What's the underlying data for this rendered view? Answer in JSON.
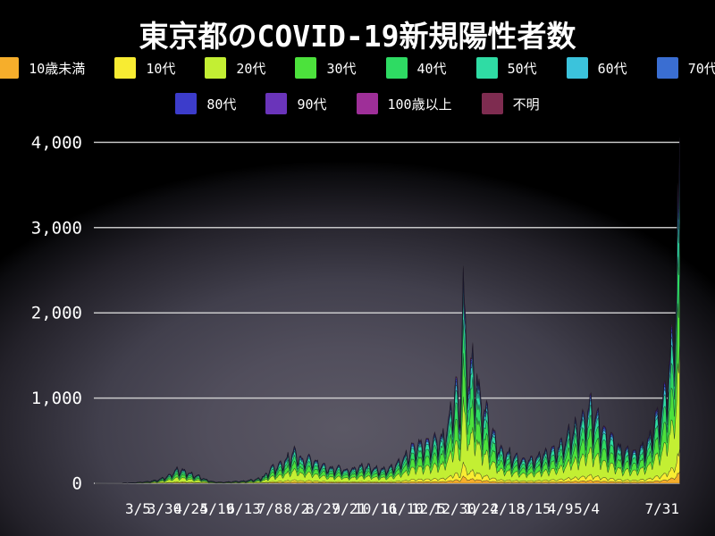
{
  "title": "東京都のCOVID-19新規陽性者数",
  "legend": {
    "rows": [
      8,
      4
    ],
    "items": [
      {
        "key": "under10",
        "label": "10歳未満",
        "color": "#f6ae2b"
      },
      {
        "key": "10s",
        "label": "10代",
        "color": "#f8ec32"
      },
      {
        "key": "20s",
        "label": "20代",
        "color": "#c3ef33"
      },
      {
        "key": "30s",
        "label": "30代",
        "color": "#4ce23c"
      },
      {
        "key": "40s",
        "label": "40代",
        "color": "#2edb63"
      },
      {
        "key": "50s",
        "label": "50代",
        "color": "#2fdca4"
      },
      {
        "key": "60s",
        "label": "60代",
        "color": "#3bc3dc"
      },
      {
        "key": "70s",
        "label": "70代",
        "color": "#3a6ed2"
      },
      {
        "key": "80s",
        "label": "80代",
        "color": "#3c3ccb"
      },
      {
        "key": "90s",
        "label": "90代",
        "color": "#6a34ba"
      },
      {
        "key": "100plus",
        "label": "100歳以上",
        "color": "#9e2f98"
      },
      {
        "key": "unknown",
        "label": "不明",
        "color": "#7e2c50"
      }
    ]
  },
  "chart_data": {
    "type": "area",
    "stacked": true,
    "title": "東京都のCOVID-19新規陽性者数",
    "xlabel": "",
    "ylabel": "",
    "grid": true,
    "legend_position": "top",
    "ylim": [
      0,
      4200
    ],
    "y_ticks": [
      {
        "label": "0",
        "value": 0
      },
      {
        "label": "1,000",
        "value": 1000
      },
      {
        "label": "2,000",
        "value": 2000
      },
      {
        "label": "3,000",
        "value": 3000
      },
      {
        "label": "4,000",
        "value": 4000
      }
    ],
    "x_ticks": [
      {
        "label": "3/5",
        "date": "2020-03-05"
      },
      {
        "label": "3/30",
        "date": "2020-03-30"
      },
      {
        "label": "4/24",
        "date": "2020-04-24"
      },
      {
        "label": "5/19",
        "date": "2020-05-19"
      },
      {
        "label": "6/13",
        "date": "2020-06-13"
      },
      {
        "label": "7/8",
        "date": "2020-07-08"
      },
      {
        "label": "8/2",
        "date": "2020-08-02"
      },
      {
        "label": "8/27",
        "date": "2020-08-27"
      },
      {
        "label": "9/21",
        "date": "2020-09-21"
      },
      {
        "label": "10/16",
        "date": "2020-10-16"
      },
      {
        "label": "11/10",
        "date": "2020-11-10"
      },
      {
        "label": "12/5",
        "date": "2020-12-05"
      },
      {
        "label": "12/30",
        "date": "2020-12-30"
      },
      {
        "label": "1/24",
        "date": "2021-01-24"
      },
      {
        "label": "2/18",
        "date": "2021-02-18"
      },
      {
        "label": "3/15",
        "date": "2021-03-15"
      },
      {
        "label": "4/9",
        "date": "2021-04-09"
      },
      {
        "label": "5/4",
        "date": "2021-05-04"
      },
      {
        "label": "7/31",
        "date": "2021-07-31",
        "align": "end"
      }
    ],
    "x_range": [
      "2020-01-24",
      "2021-07-31"
    ],
    "series_labels": [
      "10歳未満",
      "10代",
      "20代",
      "30代",
      "40代",
      "50代",
      "60代",
      "70代",
      "80代",
      "90代",
      "100歳以上",
      "不明"
    ],
    "age_shares": [
      0.034,
      0.065,
      0.3,
      0.2,
      0.155,
      0.115,
      0.05,
      0.035,
      0.025,
      0.012,
      0.002,
      0.007
    ],
    "weekday_factors": [
      0.8,
      0.52,
      0.68,
      0.84,
      0.92,
      0.97,
      1.0
    ],
    "noise": {
      "min": 0.85,
      "span": 0.15
    },
    "envelope_keypoints": [
      [
        "2020-01-24",
        0
      ],
      [
        "2020-02-15",
        2
      ],
      [
        "2020-03-01",
        8
      ],
      [
        "2020-03-14",
        25
      ],
      [
        "2020-03-24",
        50
      ],
      [
        "2020-03-31",
        90
      ],
      [
        "2020-04-07",
        150
      ],
      [
        "2020-04-11",
        200
      ],
      [
        "2020-04-17",
        190
      ],
      [
        "2020-04-24",
        140
      ],
      [
        "2020-05-01",
        110
      ],
      [
        "2020-05-08",
        55
      ],
      [
        "2020-05-16",
        20
      ],
      [
        "2020-05-24",
        15
      ],
      [
        "2020-06-02",
        25
      ],
      [
        "2020-06-10",
        30
      ],
      [
        "2020-06-19",
        45
      ],
      [
        "2020-06-26",
        65
      ],
      [
        "2020-07-03",
        110
      ],
      [
        "2020-07-09",
        220
      ],
      [
        "2020-07-15",
        250
      ],
      [
        "2020-07-23",
        340
      ],
      [
        "2020-08-01",
        470
      ],
      [
        "2020-08-07",
        340
      ],
      [
        "2020-08-14",
        380
      ],
      [
        "2020-08-21",
        300
      ],
      [
        "2020-08-28",
        250
      ],
      [
        "2020-09-04",
        220
      ],
      [
        "2020-09-11",
        230
      ],
      [
        "2020-09-18",
        200
      ],
      [
        "2020-09-25",
        210
      ],
      [
        "2020-10-02",
        240
      ],
      [
        "2020-10-09",
        250
      ],
      [
        "2020-10-16",
        220
      ],
      [
        "2020-10-23",
        200
      ],
      [
        "2020-10-30",
        220
      ],
      [
        "2020-11-06",
        290
      ],
      [
        "2020-11-13",
        400
      ],
      [
        "2020-11-20",
        540
      ],
      [
        "2020-11-27",
        570
      ],
      [
        "2020-12-04",
        600
      ],
      [
        "2020-12-11",
        620
      ],
      [
        "2020-12-18",
        670
      ],
      [
        "2020-12-24",
        890
      ],
      [
        "2020-12-31",
        1450
      ],
      [
        "2021-01-03",
        1000
      ],
      [
        "2021-01-07",
        2900
      ],
      [
        "2021-01-09",
        2270
      ],
      [
        "2021-01-13",
        1570
      ],
      [
        "2021-01-16",
        1850
      ],
      [
        "2021-01-20",
        1550
      ],
      [
        "2021-01-23",
        1250
      ],
      [
        "2021-01-28",
        1060
      ],
      [
        "2021-02-03",
        780
      ],
      [
        "2021-02-10",
        500
      ],
      [
        "2021-02-17",
        460
      ],
      [
        "2021-02-24",
        390
      ],
      [
        "2021-03-03",
        340
      ],
      [
        "2021-03-10",
        340
      ],
      [
        "2021-03-17",
        370
      ],
      [
        "2021-03-24",
        420
      ],
      [
        "2021-03-31",
        470
      ],
      [
        "2021-04-07",
        530
      ],
      [
        "2021-04-14",
        650
      ],
      [
        "2021-04-21",
        780
      ],
      [
        "2021-04-28",
        900
      ],
      [
        "2021-05-04",
        1050
      ],
      [
        "2021-05-08",
        1120
      ],
      [
        "2021-05-14",
        940
      ],
      [
        "2021-05-21",
        750
      ],
      [
        "2021-05-28",
        650
      ],
      [
        "2021-06-04",
        510
      ],
      [
        "2021-06-11",
        450
      ],
      [
        "2021-06-18",
        440
      ],
      [
        "2021-06-25",
        540
      ],
      [
        "2021-07-02",
        640
      ],
      [
        "2021-07-07",
        920
      ],
      [
        "2021-07-10",
        960
      ],
      [
        "2021-07-14",
        1150
      ],
      [
        "2021-07-17",
        1410
      ],
      [
        "2021-07-21",
        1830
      ],
      [
        "2021-07-24",
        2000
      ],
      [
        "2021-07-27",
        2850
      ],
      [
        "2021-07-28",
        3180
      ],
      [
        "2021-07-29",
        3865
      ],
      [
        "2021-07-30",
        3700
      ],
      [
        "2021-07-31",
        4058
      ]
    ],
    "annotations": {
      "final_value": 4058,
      "final_date_label": "7/31"
    }
  },
  "colors": {
    "text": "#ffffff",
    "gridline": "#d9d9d9",
    "background_center": "#5b5865",
    "background_edge": "#000000"
  }
}
